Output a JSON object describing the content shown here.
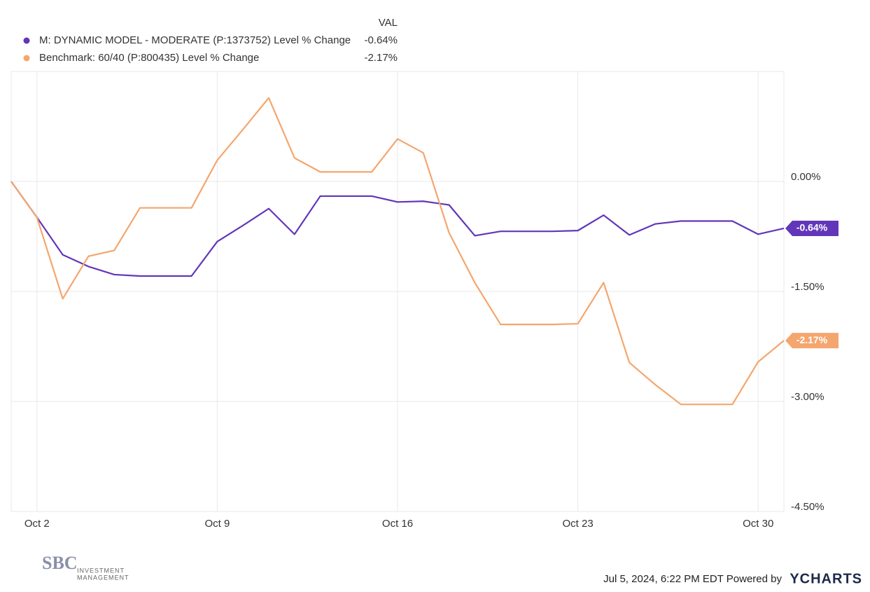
{
  "chart_data": {
    "type": "line",
    "value_header": "VAL",
    "x": [
      1,
      2,
      3,
      4,
      5,
      6,
      7,
      8,
      9,
      10,
      11,
      12,
      13,
      14,
      15,
      16,
      17,
      18,
      19,
      20,
      21,
      22,
      23,
      24,
      25,
      26,
      27,
      28,
      29,
      30,
      31
    ],
    "xlim": [
      1,
      31
    ],
    "xticks": [
      {
        "value": 2,
        "label": "Oct 2"
      },
      {
        "value": 9,
        "label": "Oct 9"
      },
      {
        "value": 16,
        "label": "Oct 16"
      },
      {
        "value": 23,
        "label": "Oct 23"
      },
      {
        "value": 30,
        "label": "Oct 30"
      }
    ],
    "ylim": [
      -4.5,
      1.5
    ],
    "yticks": [
      {
        "value": 0,
        "label": "0.00%"
      },
      {
        "value": -1.5,
        "label": "-1.50%"
      },
      {
        "value": -3,
        "label": "-3.00%"
      },
      {
        "value": -4.5,
        "label": "-4.50%"
      }
    ],
    "grid": true,
    "series": [
      {
        "name": "M: DYNAMIC MODEL - MODERATE (P:1373752) Level % Change",
        "color": "#6236b8",
        "values": [
          0,
          -0.49,
          -1.0,
          -1.16,
          -1.27,
          -1.29,
          -1.29,
          -1.29,
          -0.82,
          -0.6,
          -0.37,
          -0.72,
          -0.2,
          -0.2,
          -0.2,
          -0.28,
          -0.27,
          -0.32,
          -0.74,
          -0.68,
          -0.68,
          -0.68,
          -0.67,
          -0.46,
          -0.73,
          -0.58,
          -0.54,
          -0.54,
          -0.54,
          -0.72,
          -0.64
        ],
        "last_value_label": "-0.64%"
      },
      {
        "name": "Benchmark: 60/40 (P:800435) Level % Change",
        "color": "#f4a66e",
        "values": [
          0,
          -0.49,
          -1.6,
          -1.02,
          -0.94,
          -0.36,
          -0.36,
          -0.36,
          0.29,
          0.71,
          1.14,
          0.32,
          0.13,
          0.13,
          0.13,
          0.58,
          0.39,
          -0.7,
          -1.38,
          -1.95,
          -1.95,
          -1.95,
          -1.94,
          -1.38,
          -2.47,
          -2.77,
          -3.04,
          -3.04,
          -3.04,
          -2.46,
          -2.17
        ],
        "last_value_label": "-2.17%"
      }
    ]
  },
  "footer": {
    "logo": "SBC",
    "logo_line1": "INVESTMENT",
    "logo_line2": "MANAGEMENT",
    "timestamp": "Jul 5, 2024, 6:22 PM EDT Powered by",
    "brand": "YCHARTS"
  }
}
